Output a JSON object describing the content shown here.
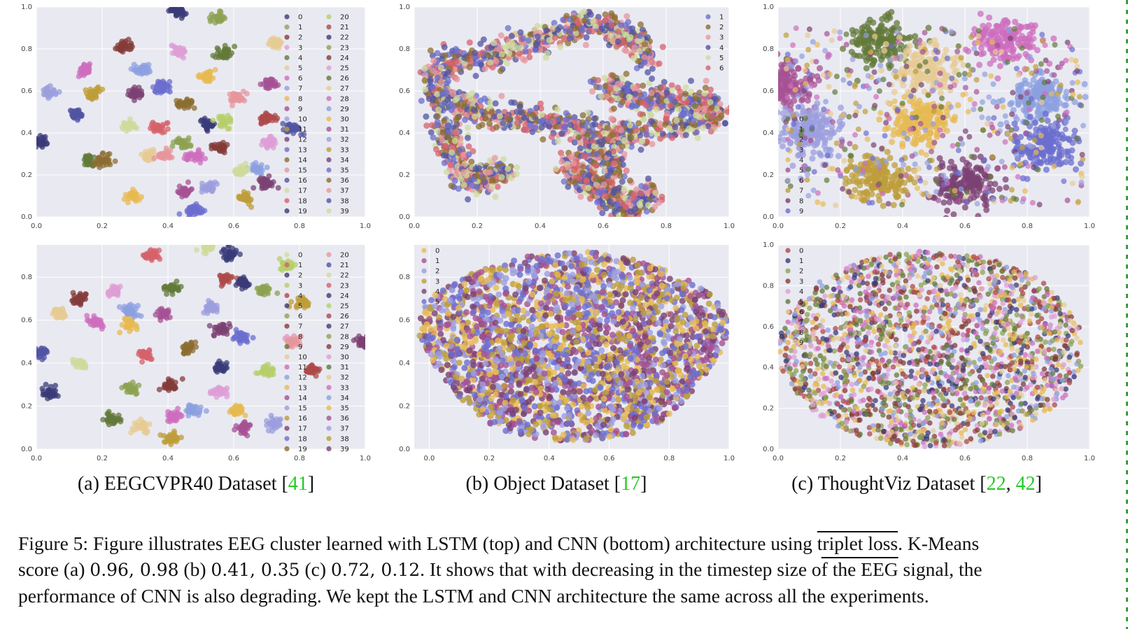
{
  "colors": {
    "panel_bg": "#e9e9f1",
    "grid": "#ffffff",
    "tick_text": "#444444",
    "citation": "#22cc22",
    "palette": [
      "#3b3b78",
      "#393b79",
      "#5254a3",
      "#6b6ecf",
      "#9c9ede",
      "#8ca0e0",
      "#637939",
      "#8ca252",
      "#b5cf6b",
      "#cedb9c",
      "#8c6d31",
      "#bd9e39",
      "#e7ba52",
      "#e7cb94",
      "#843c39",
      "#ad494a",
      "#d6616b",
      "#e7969c",
      "#7b4173",
      "#a55194",
      "#ce6dbd",
      "#de9ed6"
    ]
  },
  "chart_data": [
    {
      "id": "a-top",
      "type": "scatter",
      "title": "",
      "xlabel": "",
      "ylabel": "",
      "xlim": [
        0.0,
        1.0
      ],
      "ylim": [
        0.0,
        1.0
      ],
      "xticks": [
        "0.0",
        "0.2",
        "0.4",
        "0.6",
        "0.8",
        "1.0"
      ],
      "yticks": [
        "0.0",
        "0.2",
        "0.4",
        "0.6",
        "0.8",
        "1.0"
      ],
      "grid": true,
      "legend_placement": "right",
      "legend": [
        "0",
        "1",
        "2",
        "3",
        "4",
        "5",
        "6",
        "7",
        "8",
        "9",
        "10",
        "11",
        "12",
        "13",
        "14",
        "15",
        "16",
        "17",
        "18",
        "19",
        "20",
        "21",
        "22",
        "23",
        "24",
        "25",
        "26",
        "27",
        "28",
        "29",
        "30",
        "31",
        "32",
        "33",
        "34",
        "35",
        "36",
        "37",
        "38",
        "39"
      ],
      "pattern": "tight_clusters",
      "cluster_centers": [
        [
          0.43,
          0.98
        ],
        [
          0.55,
          0.95
        ],
        [
          0.26,
          0.81
        ],
        [
          0.43,
          0.79
        ],
        [
          0.57,
          0.78
        ],
        [
          0.73,
          0.83
        ],
        [
          0.15,
          0.7
        ],
        [
          0.32,
          0.7
        ],
        [
          0.52,
          0.67
        ],
        [
          0.71,
          0.64
        ],
        [
          0.04,
          0.59
        ],
        [
          0.17,
          0.59
        ],
        [
          0.3,
          0.59
        ],
        [
          0.38,
          0.62
        ],
        [
          0.45,
          0.54
        ],
        [
          0.61,
          0.57
        ],
        [
          0.12,
          0.49
        ],
        [
          0.28,
          0.43
        ],
        [
          0.37,
          0.43
        ],
        [
          0.52,
          0.44
        ],
        [
          0.57,
          0.45
        ],
        [
          0.7,
          0.47
        ],
        [
          0.01,
          0.36
        ],
        [
          0.44,
          0.35
        ],
        [
          0.56,
          0.33
        ],
        [
          0.71,
          0.35
        ],
        [
          0.16,
          0.27
        ],
        [
          0.34,
          0.29
        ],
        [
          0.48,
          0.29
        ],
        [
          0.67,
          0.23
        ],
        [
          0.29,
          0.1
        ],
        [
          0.45,
          0.12
        ],
        [
          0.52,
          0.14
        ],
        [
          0.64,
          0.09
        ],
        [
          0.7,
          0.16
        ],
        [
          0.48,
          0.03
        ],
        [
          0.2,
          0.27
        ],
        [
          0.39,
          0.29
        ],
        [
          0.78,
          0.42
        ],
        [
          0.62,
          0.22
        ]
      ],
      "cluster_spread": 0.012
    },
    {
      "id": "b-top",
      "type": "scatter",
      "title": "",
      "xlabel": "",
      "ylabel": "",
      "xlim": [
        0.0,
        1.0
      ],
      "ylim": [
        0.0,
        1.0
      ],
      "xticks": [
        "0.0",
        "0.2",
        "0.4",
        "0.6",
        "0.8",
        "1.0"
      ],
      "yticks": [
        "0.0",
        "0.2",
        "0.4",
        "0.6",
        "0.8",
        "1.0"
      ],
      "grid": true,
      "legend_placement": "top-right",
      "legend": [
        "1",
        "2",
        "3",
        "4",
        "5",
        "6"
      ],
      "pattern": "overlapping_manifold"
    },
    {
      "id": "c-top",
      "type": "scatter",
      "title": "",
      "xlabel": "",
      "ylabel": "",
      "xlim": [
        0.0,
        1.0
      ],
      "ylim": [
        0.0,
        1.0
      ],
      "xticks": [
        "0.0",
        "0.2",
        "0.4",
        "0.6",
        "0.8",
        "1.0"
      ],
      "yticks": [
        "0.0",
        "0.2",
        "0.4",
        "0.6",
        "0.8",
        "1.0"
      ],
      "grid": true,
      "legend_placement": "left",
      "legend": [
        "0",
        "1",
        "2",
        "3",
        "4",
        "5",
        "6",
        "7",
        "8",
        "9"
      ],
      "pattern": "loose_clusters",
      "cluster_centers": [
        [
          0.33,
          0.84
        ],
        [
          0.47,
          0.7
        ],
        [
          0.73,
          0.84
        ],
        [
          0.84,
          0.57
        ],
        [
          0.46,
          0.46
        ],
        [
          0.02,
          0.63
        ],
        [
          0.1,
          0.41
        ],
        [
          0.32,
          0.18
        ],
        [
          0.6,
          0.16
        ],
        [
          0.86,
          0.34
        ]
      ],
      "cluster_spread": 0.05
    },
    {
      "id": "a-bottom",
      "type": "scatter",
      "title": "",
      "xlabel": "",
      "ylabel": "",
      "xlim": [
        0.0,
        1.0
      ],
      "ylim": [
        0.0,
        0.95
      ],
      "xticks": [
        "0.0",
        "0.2",
        "0.4",
        "0.6",
        "0.8",
        "1.0"
      ],
      "yticks": [
        "0.0",
        "0.2",
        "0.4",
        "0.6",
        "0.8"
      ],
      "grid": true,
      "legend_placement": "right",
      "legend": [
        "0",
        "1",
        "2",
        "3",
        "4",
        "5",
        "6",
        "7",
        "8",
        "9",
        "10",
        "11",
        "12",
        "13",
        "14",
        "15",
        "16",
        "17",
        "18",
        "19",
        "20",
        "21",
        "22",
        "23",
        "24",
        "25",
        "26",
        "27",
        "28",
        "29",
        "30",
        "31",
        "32",
        "33",
        "34",
        "35",
        "36",
        "37",
        "38",
        "39"
      ],
      "pattern": "tight_clusters",
      "cluster_centers": [
        [
          0.52,
          0.94
        ],
        [
          0.35,
          0.9
        ],
        [
          0.59,
          0.91
        ],
        [
          0.76,
          0.86
        ],
        [
          0.57,
          0.79
        ],
        [
          0.63,
          0.77
        ],
        [
          0.69,
          0.74
        ],
        [
          0.13,
          0.7
        ],
        [
          0.24,
          0.73
        ],
        [
          0.41,
          0.75
        ],
        [
          0.07,
          0.63
        ],
        [
          0.18,
          0.59
        ],
        [
          0.29,
          0.64
        ],
        [
          0.28,
          0.58
        ],
        [
          0.39,
          0.63
        ],
        [
          0.53,
          0.66
        ],
        [
          0.81,
          0.68
        ],
        [
          0.56,
          0.56
        ],
        [
          0.62,
          0.52
        ],
        [
          0.46,
          0.47
        ],
        [
          0.78,
          0.5
        ],
        [
          0.01,
          0.45
        ],
        [
          0.13,
          0.4
        ],
        [
          0.33,
          0.44
        ],
        [
          0.56,
          0.38
        ],
        [
          0.7,
          0.36
        ],
        [
          0.84,
          0.37
        ],
        [
          0.04,
          0.26
        ],
        [
          0.29,
          0.28
        ],
        [
          0.41,
          0.3
        ],
        [
          0.55,
          0.27
        ],
        [
          0.23,
          0.14
        ],
        [
          0.32,
          0.11
        ],
        [
          0.42,
          0.15
        ],
        [
          0.48,
          0.18
        ],
        [
          0.61,
          0.18
        ],
        [
          0.63,
          0.1
        ],
        [
          0.72,
          0.12
        ],
        [
          0.41,
          0.05
        ],
        [
          0.99,
          0.5
        ]
      ],
      "cluster_spread": 0.012
    },
    {
      "id": "b-bottom",
      "type": "scatter",
      "title": "",
      "xlabel": "",
      "ylabel": "",
      "xlim": [
        -0.05,
        1.0
      ],
      "ylim": [
        0.0,
        0.95
      ],
      "xticks": [
        "0.0",
        "0.2",
        "0.4",
        "0.6",
        "0.8",
        "1.0"
      ],
      "yticks": [
        "0.0",
        "0.2",
        "0.4",
        "0.6",
        "0.8"
      ],
      "grid": true,
      "legend_placement": "top-left",
      "legend": [
        "0",
        "1",
        "2",
        "3",
        "4",
        "5"
      ],
      "pattern": "dense_blob",
      "blob_center": [
        0.48,
        0.48
      ],
      "blob_radii": [
        0.5,
        0.44
      ]
    },
    {
      "id": "c-bottom",
      "type": "scatter",
      "title": "",
      "xlabel": "",
      "ylabel": "",
      "xlim": [
        0.0,
        1.0
      ],
      "ylim": [
        0.0,
        1.0
      ],
      "xticks": [
        "0.0",
        "0.2",
        "0.4",
        "0.6",
        "0.8",
        "1.0"
      ],
      "yticks": [
        "0.0",
        "0.2",
        "0.4",
        "0.6",
        "0.8",
        "1.0"
      ],
      "grid": true,
      "legend_placement": "top-left",
      "legend": [
        "0",
        "1",
        "2",
        "3",
        "4",
        "5",
        "6",
        "7",
        "8",
        "9"
      ],
      "pattern": "uniform_disk",
      "blob_center": [
        0.49,
        0.49
      ],
      "blob_radii": [
        0.49,
        0.48
      ]
    }
  ],
  "subcaptions": [
    {
      "prefix": "(a) EEGCVPR40 Dataset [",
      "refs": [
        "41"
      ],
      "suffix": "]"
    },
    {
      "prefix": "(b) Object Dataset [",
      "refs": [
        "17"
      ],
      "suffix": "]"
    },
    {
      "prefix": "(c) ThoughtViz Dataset [",
      "refs": [
        "22",
        "42"
      ],
      "suffix": "]"
    }
  ],
  "caption": {
    "line1_a": "Figure 5: Figure illustrates EEG cluster learned with LSTM (top) and CNN (bottom) architecture using ",
    "line1_u": "triplet loss",
    "line1_b": ". K-Means",
    "line2_a": "score (a) ",
    "line2_m1": "0.96, 0.98",
    "line2_b": " (b) ",
    "line2_m2": "0.41, 0.35",
    "line2_c": " (c) ",
    "line2_m3": "0.72, 0.12",
    "line2_d": ".  It shows that with decreasing in the timestep size o",
    "line2_u": "f the EEG",
    "line2_e": " signal, the",
    "line3": "performance of CNN is also degrading. We kept the LSTM and CNN architecture the same across all the experiments."
  }
}
